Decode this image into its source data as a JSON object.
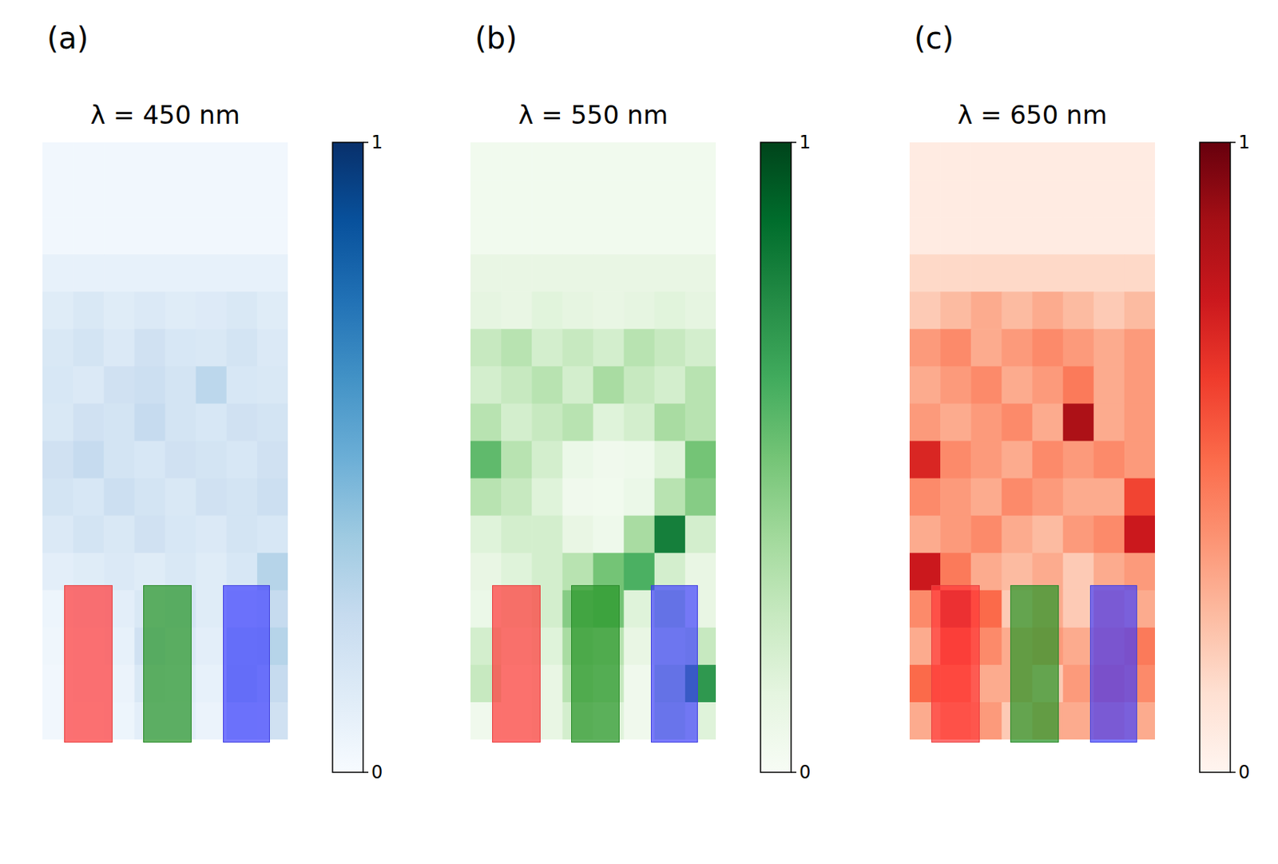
{
  "chart_data": [
    {
      "type": "heatmap",
      "label": "(a)",
      "title": "λ = 450 nm",
      "color": "Blues",
      "tick_labels": false,
      "colorbar": {
        "range": [
          0,
          1
        ],
        "ticks": [
          0,
          1
        ]
      },
      "cells": [
        [
          0.03,
          0.03,
          0.03,
          0.03,
          0.03,
          0.03,
          0.03,
          0.03
        ],
        [
          0.03,
          0.03,
          0.03,
          0.03,
          0.03,
          0.03,
          0.03,
          0.03
        ],
        [
          0.03,
          0.03,
          0.03,
          0.03,
          0.03,
          0.03,
          0.03,
          0.03
        ],
        [
          0.08,
          0.08,
          0.08,
          0.08,
          0.08,
          0.08,
          0.08,
          0.08
        ],
        [
          0.12,
          0.15,
          0.12,
          0.14,
          0.12,
          0.13,
          0.15,
          0.12
        ],
        [
          0.15,
          0.18,
          0.14,
          0.2,
          0.16,
          0.15,
          0.18,
          0.14
        ],
        [
          0.16,
          0.14,
          0.2,
          0.22,
          0.18,
          0.28,
          0.16,
          0.15
        ],
        [
          0.15,
          0.2,
          0.18,
          0.25,
          0.18,
          0.16,
          0.2,
          0.18
        ],
        [
          0.2,
          0.25,
          0.18,
          0.16,
          0.2,
          0.18,
          0.16,
          0.2
        ],
        [
          0.18,
          0.16,
          0.22,
          0.18,
          0.15,
          0.2,
          0.18,
          0.22
        ],
        [
          0.14,
          0.18,
          0.15,
          0.2,
          0.16,
          0.14,
          0.18,
          0.16
        ],
        [
          0.1,
          0.12,
          0.14,
          0.12,
          0.15,
          0.12,
          0.16,
          0.3
        ],
        [
          0.05,
          0.08,
          0.1,
          0.15,
          0.18,
          0.12,
          0.22,
          0.25
        ],
        [
          0.04,
          0.06,
          0.08,
          0.2,
          0.15,
          0.1,
          0.28,
          0.3
        ],
        [
          0.03,
          0.05,
          0.06,
          0.15,
          0.12,
          0.08,
          0.3,
          0.25
        ],
        [
          0.03,
          0.04,
          0.05,
          0.1,
          0.1,
          0.06,
          0.22,
          0.2
        ]
      ]
    },
    {
      "type": "heatmap",
      "label": "(b)",
      "title": "λ = 550 nm",
      "color": "Greens",
      "tick_labels": false,
      "colorbar": {
        "range": [
          0,
          1
        ],
        "ticks": [
          0,
          1
        ]
      },
      "cells": [
        [
          0.04,
          0.04,
          0.04,
          0.04,
          0.04,
          0.04,
          0.04,
          0.04
        ],
        [
          0.04,
          0.04,
          0.04,
          0.04,
          0.04,
          0.04,
          0.04,
          0.04
        ],
        [
          0.04,
          0.04,
          0.04,
          0.04,
          0.04,
          0.04,
          0.04,
          0.04
        ],
        [
          0.1,
          0.1,
          0.1,
          0.1,
          0.1,
          0.1,
          0.1,
          0.1
        ],
        [
          0.12,
          0.1,
          0.14,
          0.12,
          0.1,
          0.12,
          0.14,
          0.12
        ],
        [
          0.25,
          0.3,
          0.2,
          0.25,
          0.2,
          0.3,
          0.25,
          0.2
        ],
        [
          0.2,
          0.25,
          0.3,
          0.2,
          0.35,
          0.25,
          0.2,
          0.3
        ],
        [
          0.3,
          0.2,
          0.25,
          0.3,
          0.15,
          0.2,
          0.35,
          0.3
        ],
        [
          0.55,
          0.3,
          0.2,
          0.08,
          0.05,
          0.06,
          0.15,
          0.5
        ],
        [
          0.3,
          0.25,
          0.15,
          0.05,
          0.04,
          0.08,
          0.3,
          0.45
        ],
        [
          0.15,
          0.2,
          0.2,
          0.1,
          0.06,
          0.35,
          0.8,
          0.2
        ],
        [
          0.1,
          0.15,
          0.2,
          0.3,
          0.5,
          0.6,
          0.2,
          0.1
        ],
        [
          0.08,
          0.15,
          0.2,
          0.45,
          0.5,
          0.15,
          0.3,
          0.1
        ],
        [
          0.2,
          0.1,
          0.15,
          0.35,
          0.3,
          0.1,
          0.2,
          0.25
        ],
        [
          0.25,
          0.05,
          0.1,
          0.3,
          0.25,
          0.05,
          0.3,
          0.7
        ],
        [
          0.05,
          0.04,
          0.1,
          0.2,
          0.15,
          0.05,
          0.25,
          0.15
        ]
      ]
    },
    {
      "type": "heatmap",
      "label": "(c)",
      "title": "λ = 650 nm",
      "color": "Reds",
      "tick_labels": false,
      "colorbar": {
        "range": [
          0,
          1
        ],
        "ticks": [
          0,
          1
        ]
      },
      "cells": [
        [
          0.06,
          0.06,
          0.06,
          0.06,
          0.06,
          0.06,
          0.06,
          0.06
        ],
        [
          0.06,
          0.06,
          0.06,
          0.06,
          0.06,
          0.06,
          0.06,
          0.06
        ],
        [
          0.06,
          0.06,
          0.06,
          0.06,
          0.06,
          0.06,
          0.06,
          0.06
        ],
        [
          0.15,
          0.15,
          0.15,
          0.15,
          0.15,
          0.15,
          0.15,
          0.15
        ],
        [
          0.2,
          0.25,
          0.3,
          0.25,
          0.3,
          0.25,
          0.2,
          0.25
        ],
        [
          0.35,
          0.4,
          0.3,
          0.35,
          0.4,
          0.35,
          0.3,
          0.35
        ],
        [
          0.3,
          0.35,
          0.4,
          0.3,
          0.35,
          0.45,
          0.3,
          0.35
        ],
        [
          0.35,
          0.3,
          0.35,
          0.4,
          0.3,
          0.85,
          0.3,
          0.35
        ],
        [
          0.7,
          0.4,
          0.35,
          0.3,
          0.4,
          0.35,
          0.4,
          0.35
        ],
        [
          0.4,
          0.35,
          0.3,
          0.4,
          0.35,
          0.3,
          0.3,
          0.6
        ],
        [
          0.3,
          0.35,
          0.4,
          0.3,
          0.25,
          0.35,
          0.4,
          0.75
        ],
        [
          0.75,
          0.45,
          0.3,
          0.25,
          0.3,
          0.2,
          0.3,
          0.35
        ],
        [
          0.4,
          0.8,
          0.5,
          0.2,
          0.3,
          0.2,
          0.35,
          0.3
        ],
        [
          0.3,
          0.6,
          0.4,
          0.3,
          0.35,
          0.3,
          0.4,
          0.45
        ],
        [
          0.5,
          0.5,
          0.3,
          0.3,
          0.2,
          0.35,
          0.45,
          0.4
        ],
        [
          0.3,
          0.4,
          0.35,
          0.2,
          0.3,
          0.3,
          0.35,
          0.3
        ]
      ]
    }
  ]
}
